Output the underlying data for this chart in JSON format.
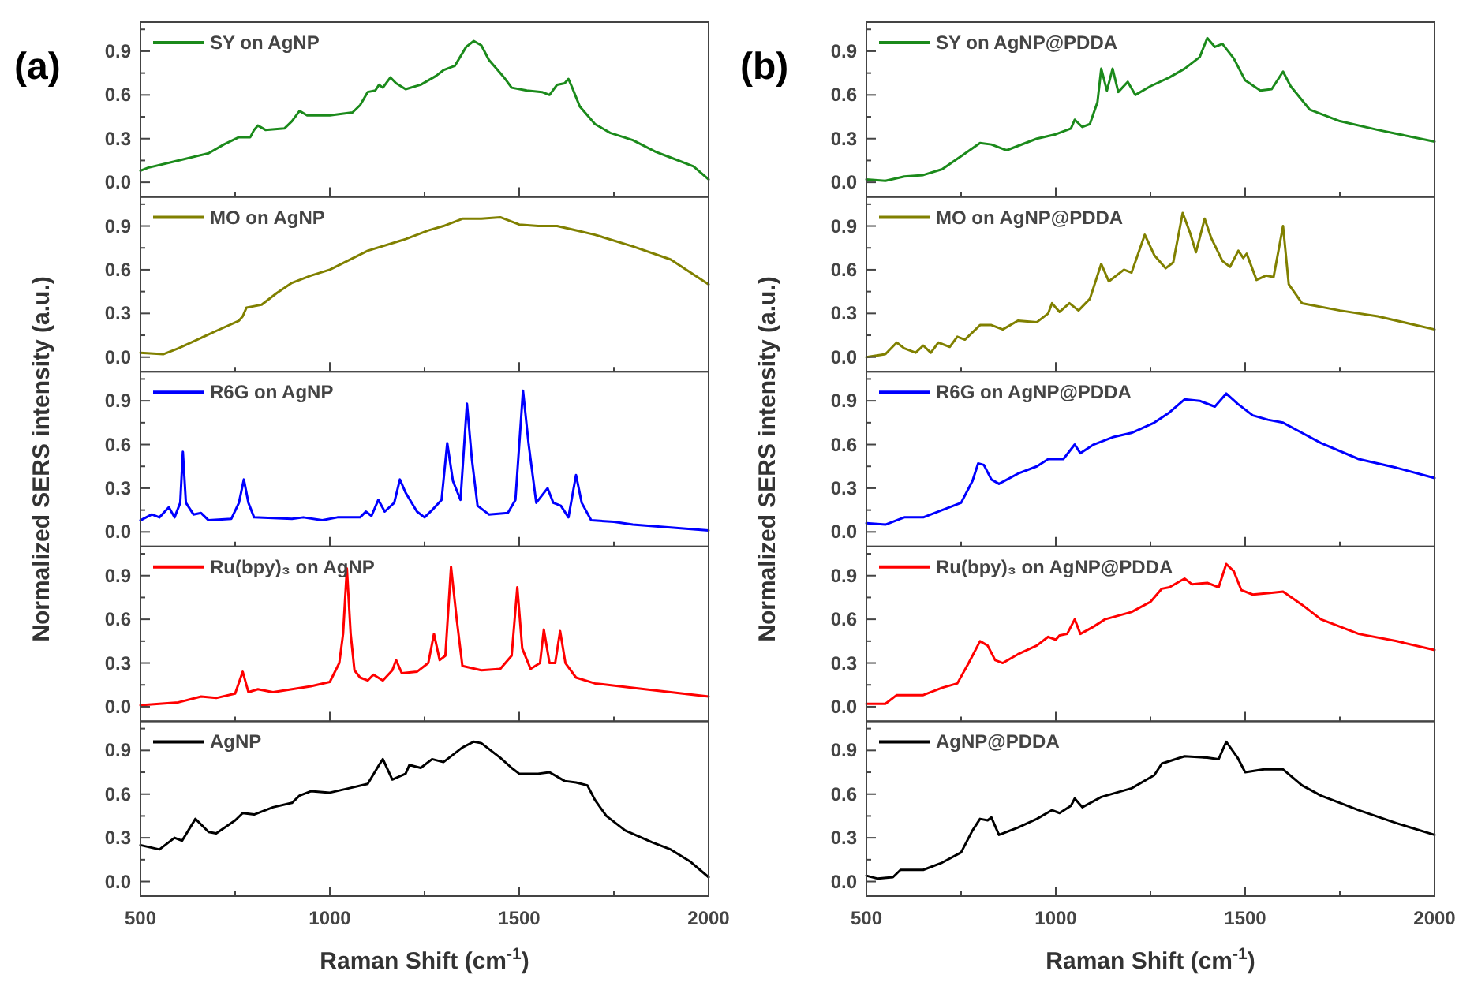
{
  "chart_data": [
    {
      "type": "line",
      "title": "(a)",
      "series": [
        {
          "name": "SY on AgNP",
          "color": "#1b8a1b",
          "x": [
            500,
            520,
            600,
            680,
            720,
            760,
            790,
            800,
            810,
            830,
            880,
            900,
            920,
            940,
            1000,
            1060,
            1080,
            1100,
            1120,
            1130,
            1140,
            1160,
            1175,
            1200,
            1240,
            1280,
            1300,
            1330,
            1360,
            1380,
            1400,
            1420,
            1440,
            1460,
            1480,
            1520,
            1560,
            1580,
            1600,
            1620,
            1630,
            1640,
            1660,
            1700,
            1740,
            1800,
            1860,
            1900,
            1960,
            2000
          ],
          "values": [
            0.08,
            0.1,
            0.15,
            0.2,
            0.26,
            0.31,
            0.31,
            0.36,
            0.39,
            0.36,
            0.37,
            0.42,
            0.49,
            0.46,
            0.46,
            0.48,
            0.53,
            0.62,
            0.63,
            0.67,
            0.65,
            0.72,
            0.68,
            0.64,
            0.67,
            0.73,
            0.77,
            0.8,
            0.93,
            0.97,
            0.94,
            0.84,
            0.78,
            0.72,
            0.65,
            0.63,
            0.62,
            0.6,
            0.67,
            0.68,
            0.71,
            0.65,
            0.52,
            0.4,
            0.34,
            0.29,
            0.21,
            0.17,
            0.11,
            0.02
          ]
        }
      ],
      "xlim": [
        500,
        2000
      ],
      "xticks": [
        500,
        {
          "value": 750,
          "label": null
        },
        1000,
        {
          "value": 1250,
          "label": null
        },
        1500,
        {
          "value": 1750,
          "label": null
        },
        2000
      ],
      "ylim": [
        -0.1,
        1.1
      ],
      "yticks": [
        {
          "value": 0,
          "label": "0.0"
        },
        {
          "value": 0.15,
          "label": null
        },
        0.3,
        {
          "value": 0.45,
          "label": null
        },
        0.6,
        {
          "value": 0.75,
          "label": null
        },
        0.9,
        {
          "value": 1.05,
          "label": null
        }
      ],
      "legend": "top left",
      "tick_labels": "y"
    },
    {
      "type": "line",
      "series": [
        {
          "name": "MO on AgNP",
          "color": "#808000",
          "x": [
            500,
            560,
            600,
            700,
            760,
            770,
            780,
            800,
            820,
            860,
            900,
            950,
            1000,
            1100,
            1200,
            1260,
            1300,
            1350,
            1400,
            1450,
            1500,
            1550,
            1600,
            1650,
            1700,
            1800,
            1900,
            2000
          ],
          "values": [
            0.03,
            0.02,
            0.06,
            0.18,
            0.25,
            0.28,
            0.34,
            0.35,
            0.36,
            0.44,
            0.51,
            0.56,
            0.6,
            0.73,
            0.81,
            0.87,
            0.9,
            0.95,
            0.95,
            0.96,
            0.91,
            0.9,
            0.9,
            0.87,
            0.84,
            0.76,
            0.67,
            0.5
          ]
        }
      ],
      "xlim": [
        500,
        2000
      ],
      "xticks": [
        500,
        {
          "value": 750,
          "label": null
        },
        1000,
        {
          "value": 1250,
          "label": null
        },
        1500,
        {
          "value": 1750,
          "label": null
        },
        2000
      ],
      "ylim": [
        -0.1,
        1.1
      ],
      "yticks": [
        {
          "value": 0,
          "label": "0.0"
        },
        {
          "value": 0.15,
          "label": null
        },
        0.3,
        {
          "value": 0.45,
          "label": null
        },
        0.6,
        {
          "value": 0.75,
          "label": null
        },
        0.9,
        {
          "value": 1.05,
          "label": null
        }
      ],
      "legend": "top left",
      "tick_labels": "y"
    },
    {
      "type": "line",
      "ylabel": "Normalized SERS intensity (a.u.)",
      "series": [
        {
          "name": "R6G on AgNP",
          "color": "#0000ff",
          "x": [
            500,
            530,
            550,
            575,
            590,
            605,
            612,
            620,
            640,
            660,
            680,
            740,
            760,
            773,
            785,
            800,
            900,
            930,
            980,
            1020,
            1080,
            1095,
            1110,
            1128,
            1145,
            1170,
            1185,
            1200,
            1230,
            1250,
            1270,
            1295,
            1310,
            1325,
            1345,
            1362,
            1375,
            1390,
            1420,
            1470,
            1490,
            1510,
            1525,
            1545,
            1575,
            1590,
            1610,
            1630,
            1650,
            1665,
            1690,
            1750,
            1800,
            1900,
            2000
          ],
          "values": [
            0.08,
            0.12,
            0.1,
            0.17,
            0.1,
            0.2,
            0.55,
            0.2,
            0.12,
            0.13,
            0.08,
            0.09,
            0.2,
            0.36,
            0.2,
            0.1,
            0.09,
            0.1,
            0.08,
            0.1,
            0.1,
            0.14,
            0.11,
            0.22,
            0.14,
            0.2,
            0.36,
            0.27,
            0.14,
            0.1,
            0.15,
            0.22,
            0.61,
            0.35,
            0.22,
            0.88,
            0.5,
            0.18,
            0.12,
            0.13,
            0.22,
            0.97,
            0.6,
            0.2,
            0.3,
            0.2,
            0.18,
            0.1,
            0.39,
            0.2,
            0.08,
            0.07,
            0.05,
            0.03,
            0.01
          ]
        }
      ],
      "xlim": [
        500,
        2000
      ],
      "xticks": [
        500,
        {
          "value": 750,
          "label": null
        },
        1000,
        {
          "value": 1250,
          "label": null
        },
        1500,
        {
          "value": 1750,
          "label": null
        },
        2000
      ],
      "ylim": [
        -0.1,
        1.1
      ],
      "yticks": [
        {
          "value": 0,
          "label": "0.0"
        },
        {
          "value": 0.15,
          "label": null
        },
        0.3,
        {
          "value": 0.45,
          "label": null
        },
        0.6,
        {
          "value": 0.75,
          "label": null
        },
        0.9,
        {
          "value": 1.05,
          "label": null
        }
      ],
      "legend": "top left",
      "tick_labels": "y"
    },
    {
      "type": "line",
      "series": [
        {
          "name": "Ru(bpy)₃ on AgNP",
          "color": "#ff0000",
          "x": [
            500,
            600,
            660,
            700,
            750,
            770,
            785,
            810,
            850,
            900,
            950,
            1000,
            1025,
            1035,
            1045,
            1055,
            1065,
            1080,
            1100,
            1115,
            1140,
            1165,
            1175,
            1190,
            1230,
            1260,
            1275,
            1290,
            1305,
            1320,
            1335,
            1350,
            1400,
            1450,
            1480,
            1495,
            1508,
            1530,
            1555,
            1565,
            1580,
            1595,
            1608,
            1622,
            1650,
            1700,
            1800,
            1900,
            2000
          ],
          "values": [
            0.01,
            0.03,
            0.07,
            0.06,
            0.09,
            0.24,
            0.1,
            0.12,
            0.1,
            0.12,
            0.14,
            0.17,
            0.3,
            0.5,
            0.95,
            0.5,
            0.25,
            0.2,
            0.18,
            0.22,
            0.18,
            0.25,
            0.32,
            0.23,
            0.24,
            0.3,
            0.5,
            0.32,
            0.35,
            0.96,
            0.6,
            0.28,
            0.25,
            0.26,
            0.35,
            0.82,
            0.4,
            0.26,
            0.3,
            0.53,
            0.3,
            0.3,
            0.52,
            0.3,
            0.2,
            0.16,
            0.13,
            0.1,
            0.07
          ]
        }
      ],
      "xlim": [
        500,
        2000
      ],
      "xticks": [
        500,
        {
          "value": 750,
          "label": null
        },
        1000,
        {
          "value": 1250,
          "label": null
        },
        1500,
        {
          "value": 1750,
          "label": null
        },
        2000
      ],
      "ylim": [
        -0.1,
        1.1
      ],
      "yticks": [
        {
          "value": 0,
          "label": "0.0"
        },
        {
          "value": 0.15,
          "label": null
        },
        0.3,
        {
          "value": 0.45,
          "label": null
        },
        0.6,
        {
          "value": 0.75,
          "label": null
        },
        0.9,
        {
          "value": 1.05,
          "label": null
        }
      ],
      "legend": "top left",
      "tick_labels": "y"
    },
    {
      "type": "line",
      "xlabel": "Raman Shift (cm$^{-1}$)",
      "series": [
        {
          "name": "AgNP",
          "color": "#000000",
          "x": [
            500,
            550,
            590,
            610,
            645,
            680,
            700,
            750,
            770,
            800,
            850,
            900,
            920,
            950,
            1000,
            1050,
            1100,
            1130,
            1140,
            1165,
            1200,
            1210,
            1240,
            1270,
            1300,
            1350,
            1380,
            1400,
            1450,
            1480,
            1500,
            1550,
            1580,
            1620,
            1650,
            1680,
            1700,
            1730,
            1780,
            1850,
            1900,
            1950,
            2000
          ],
          "values": [
            0.25,
            0.22,
            0.3,
            0.28,
            0.43,
            0.34,
            0.33,
            0.42,
            0.47,
            0.46,
            0.51,
            0.54,
            0.59,
            0.62,
            0.61,
            0.64,
            0.67,
            0.8,
            0.84,
            0.7,
            0.74,
            0.8,
            0.78,
            0.84,
            0.82,
            0.92,
            0.96,
            0.95,
            0.85,
            0.78,
            0.74,
            0.74,
            0.75,
            0.69,
            0.68,
            0.66,
            0.56,
            0.45,
            0.35,
            0.27,
            0.22,
            0.14,
            0.03
          ]
        }
      ],
      "xlim": [
        500,
        2000
      ],
      "xticks": [
        500,
        {
          "value": 750,
          "label": null
        },
        1000,
        {
          "value": 1250,
          "label": null
        },
        1500,
        {
          "value": 1750,
          "label": null
        },
        2000
      ],
      "ylim": [
        -0.1,
        1.1
      ],
      "yticks": [
        {
          "value": 0,
          "label": "0.0"
        },
        {
          "value": 0.15,
          "label": null
        },
        0.3,
        {
          "value": 0.45,
          "label": null
        },
        0.6,
        {
          "value": 0.75,
          "label": null
        },
        0.9,
        {
          "value": 1.05,
          "label": null
        }
      ],
      "legend": "top left"
    },
    {
      "type": "line",
      "title": "(b)",
      "series": [
        {
          "name": "SY on AgNP@PDDA",
          "color": "#1b8a1b",
          "x": [
            500,
            550,
            600,
            650,
            700,
            750,
            800,
            830,
            870,
            950,
            1000,
            1040,
            1050,
            1070,
            1090,
            1110,
            1120,
            1135,
            1150,
            1165,
            1190,
            1210,
            1250,
            1300,
            1340,
            1380,
            1400,
            1420,
            1440,
            1470,
            1500,
            1540,
            1570,
            1600,
            1620,
            1670,
            1750,
            1850,
            2000
          ],
          "values": [
            0.02,
            0.01,
            0.04,
            0.05,
            0.09,
            0.18,
            0.27,
            0.26,
            0.22,
            0.3,
            0.33,
            0.37,
            0.43,
            0.38,
            0.4,
            0.55,
            0.78,
            0.63,
            0.78,
            0.62,
            0.69,
            0.6,
            0.66,
            0.72,
            0.78,
            0.86,
            0.99,
            0.93,
            0.95,
            0.85,
            0.7,
            0.63,
            0.64,
            0.76,
            0.66,
            0.5,
            0.42,
            0.36,
            0.28
          ]
        }
      ],
      "xlim": [
        500,
        2000
      ],
      "xticks": [
        500,
        {
          "value": 750,
          "label": null
        },
        1000,
        {
          "value": 1250,
          "label": null
        },
        1500,
        {
          "value": 1750,
          "label": null
        },
        2000
      ],
      "ylim": [
        -0.1,
        1.1
      ],
      "yticks": [
        {
          "value": 0,
          "label": "0.0"
        },
        {
          "value": 0.15,
          "label": null
        },
        0.3,
        {
          "value": 0.45,
          "label": null
        },
        0.6,
        {
          "value": 0.75,
          "label": null
        },
        0.9,
        {
          "value": 1.05,
          "label": null
        }
      ],
      "legend": "top left",
      "tick_labels": "y"
    },
    {
      "type": "line",
      "series": [
        {
          "name": "MO on AgNP@PDDA",
          "color": "#808000",
          "x": [
            500,
            550,
            580,
            600,
            630,
            650,
            670,
            690,
            720,
            740,
            760,
            800,
            830,
            860,
            900,
            950,
            980,
            990,
            1010,
            1036,
            1060,
            1090,
            1120,
            1140,
            1180,
            1200,
            1235,
            1260,
            1290,
            1310,
            1335,
            1355,
            1370,
            1393,
            1410,
            1440,
            1460,
            1482,
            1495,
            1504,
            1530,
            1555,
            1575,
            1600,
            1615,
            1650,
            1750,
            1850,
            2000
          ],
          "values": [
            0.0,
            0.02,
            0.1,
            0.06,
            0.03,
            0.08,
            0.03,
            0.1,
            0.07,
            0.14,
            0.12,
            0.22,
            0.22,
            0.19,
            0.25,
            0.24,
            0.3,
            0.37,
            0.31,
            0.37,
            0.32,
            0.4,
            0.64,
            0.52,
            0.6,
            0.58,
            0.84,
            0.7,
            0.61,
            0.65,
            0.99,
            0.85,
            0.72,
            0.95,
            0.82,
            0.66,
            0.62,
            0.73,
            0.68,
            0.71,
            0.53,
            0.56,
            0.55,
            0.9,
            0.5,
            0.37,
            0.32,
            0.28,
            0.19
          ]
        }
      ],
      "xlim": [
        500,
        2000
      ],
      "xticks": [
        500,
        {
          "value": 750,
          "label": null
        },
        1000,
        {
          "value": 1250,
          "label": null
        },
        1500,
        {
          "value": 1750,
          "label": null
        },
        2000
      ],
      "ylim": [
        -0.1,
        1.1
      ],
      "yticks": [
        {
          "value": 0,
          "label": "0.0"
        },
        {
          "value": 0.15,
          "label": null
        },
        0.3,
        {
          "value": 0.45,
          "label": null
        },
        0.6,
        {
          "value": 0.75,
          "label": null
        },
        0.9,
        {
          "value": 1.05,
          "label": null
        }
      ],
      "legend": "top left",
      "tick_labels": "y"
    },
    {
      "type": "line",
      "ylabel": "Normalized SERS intensity (a.u.)",
      "series": [
        {
          "name": "R6G on AgNP@PDDA",
          "color": "#0000ff",
          "x": [
            500,
            550,
            600,
            650,
            700,
            750,
            780,
            795,
            810,
            830,
            850,
            900,
            950,
            980,
            1020,
            1050,
            1065,
            1100,
            1150,
            1200,
            1260,
            1300,
            1340,
            1380,
            1420,
            1450,
            1480,
            1520,
            1560,
            1600,
            1650,
            1700,
            1800,
            1900,
            2000
          ],
          "values": [
            0.06,
            0.05,
            0.1,
            0.1,
            0.15,
            0.2,
            0.35,
            0.47,
            0.46,
            0.36,
            0.33,
            0.4,
            0.45,
            0.5,
            0.5,
            0.6,
            0.54,
            0.6,
            0.65,
            0.68,
            0.75,
            0.82,
            0.91,
            0.9,
            0.86,
            0.95,
            0.88,
            0.8,
            0.77,
            0.75,
            0.68,
            0.61,
            0.5,
            0.44,
            0.37
          ]
        }
      ],
      "xlim": [
        500,
        2000
      ],
      "xticks": [
        500,
        {
          "value": 750,
          "label": null
        },
        1000,
        {
          "value": 1250,
          "label": null
        },
        1500,
        {
          "value": 1750,
          "label": null
        },
        2000
      ],
      "ylim": [
        -0.1,
        1.1
      ],
      "yticks": [
        {
          "value": 0,
          "label": "0.0"
        },
        {
          "value": 0.15,
          "label": null
        },
        0.3,
        {
          "value": 0.45,
          "label": null
        },
        0.6,
        {
          "value": 0.75,
          "label": null
        },
        0.9,
        {
          "value": 1.05,
          "label": null
        }
      ],
      "legend": "top left",
      "tick_labels": "y"
    },
    {
      "type": "line",
      "series": [
        {
          "name": "Ru(bpy)₃ on AgNP@PDDA",
          "color": "#ff0000",
          "x": [
            500,
            550,
            580,
            650,
            700,
            740,
            770,
            800,
            820,
            840,
            860,
            900,
            950,
            980,
            1000,
            1010,
            1030,
            1050,
            1065,
            1100,
            1130,
            1200,
            1250,
            1280,
            1300,
            1340,
            1360,
            1400,
            1430,
            1450,
            1470,
            1490,
            1520,
            1560,
            1600,
            1650,
            1700,
            1800,
            1900,
            2000
          ],
          "values": [
            0.02,
            0.02,
            0.08,
            0.08,
            0.13,
            0.16,
            0.3,
            0.45,
            0.42,
            0.32,
            0.3,
            0.36,
            0.42,
            0.48,
            0.46,
            0.49,
            0.5,
            0.6,
            0.5,
            0.55,
            0.6,
            0.65,
            0.72,
            0.81,
            0.82,
            0.88,
            0.84,
            0.85,
            0.82,
            0.98,
            0.93,
            0.8,
            0.77,
            0.78,
            0.79,
            0.7,
            0.6,
            0.5,
            0.45,
            0.39
          ]
        }
      ],
      "xlim": [
        500,
        2000
      ],
      "xticks": [
        500,
        {
          "value": 750,
          "label": null
        },
        1000,
        {
          "value": 1250,
          "label": null
        },
        1500,
        {
          "value": 1750,
          "label": null
        },
        2000
      ],
      "ylim": [
        -0.1,
        1.1
      ],
      "yticks": [
        {
          "value": 0,
          "label": "0.0"
        },
        {
          "value": 0.15,
          "label": null
        },
        0.3,
        {
          "value": 0.45,
          "label": null
        },
        0.6,
        {
          "value": 0.75,
          "label": null
        },
        0.9,
        {
          "value": 1.05,
          "label": null
        }
      ],
      "legend": "top left",
      "tick_labels": "y"
    },
    {
      "type": "line",
      "xlabel": "Raman Shift (cm$^{-1}$)",
      "series": [
        {
          "name": "AgNP@PDDA",
          "color": "#000000",
          "x": [
            500,
            530,
            570,
            590,
            650,
            700,
            750,
            780,
            800,
            820,
            830,
            850,
            900,
            950,
            990,
            1010,
            1040,
            1050,
            1070,
            1120,
            1200,
            1260,
            1280,
            1340,
            1400,
            1430,
            1450,
            1480,
            1500,
            1550,
            1600,
            1650,
            1700,
            1800,
            1900,
            2000
          ],
          "values": [
            0.04,
            0.02,
            0.03,
            0.08,
            0.08,
            0.13,
            0.2,
            0.35,
            0.43,
            0.42,
            0.44,
            0.32,
            0.37,
            0.43,
            0.49,
            0.47,
            0.52,
            0.57,
            0.51,
            0.58,
            0.64,
            0.73,
            0.81,
            0.86,
            0.85,
            0.84,
            0.96,
            0.85,
            0.75,
            0.77,
            0.77,
            0.66,
            0.59,
            0.49,
            0.4,
            0.32
          ]
        }
      ],
      "xlim": [
        500,
        2000
      ],
      "xticks": [
        500,
        {
          "value": 750,
          "label": null
        },
        1000,
        {
          "value": 1250,
          "label": null
        },
        1500,
        {
          "value": 1750,
          "label": null
        },
        2000
      ],
      "ylim": [
        -0.1,
        1.1
      ],
      "yticks": [
        {
          "value": 0,
          "label": "0.0"
        },
        {
          "value": 0.15,
          "label": null
        },
        0.3,
        {
          "value": 0.45,
          "label": null
        },
        0.6,
        {
          "value": 0.75,
          "label": null
        },
        0.9,
        {
          "value": 1.05,
          "label": null
        }
      ],
      "legend": "top left"
    }
  ]
}
